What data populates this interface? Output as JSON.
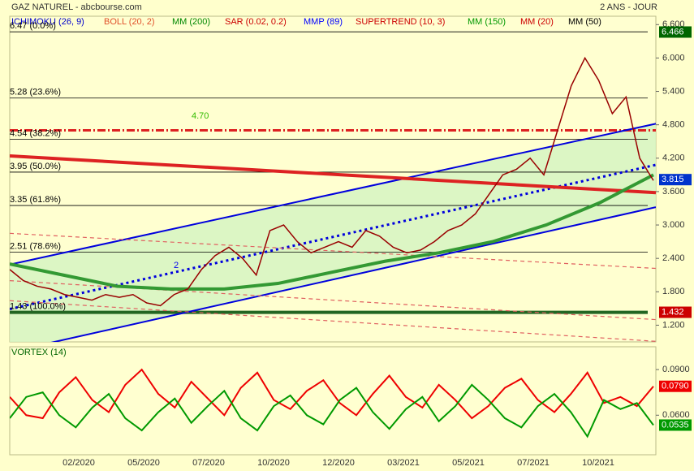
{
  "chart_data": [
    {
      "type": "line",
      "title": "GAZ NATUREL - abcbourse.com",
      "subtitle": "2 ANS - JOUR",
      "legend": [
        {
          "name": "ICHIMOKU (26, 9)",
          "color": "#0000cc"
        },
        {
          "name": "BOLL (20, 2)",
          "color": "#e0502a"
        },
        {
          "name": "MM (200)",
          "color": "#008800"
        },
        {
          "name": "SAR (0.02, 0.2)",
          "color": "#cc0000"
        },
        {
          "name": "MMP (89)",
          "color": "#0000ff"
        },
        {
          "name": "SUPERTREND (10, 3)",
          "color": "#cc0000"
        },
        {
          "name": "MM (150)",
          "color": "#009900"
        },
        {
          "name": "MM (20)",
          "color": "#cc0000"
        },
        {
          "name": "MM (50)",
          "color": "#000000"
        }
      ],
      "x_labels": [
        "02/2020",
        "05/2020",
        "07/2020",
        "10/2020",
        "12/2020",
        "03/2021",
        "05/2021",
        "07/2021",
        "10/2021"
      ],
      "ylim": [
        0.9,
        6.75
      ],
      "yticks": [
        {
          "value": 1.2,
          "label": "1.200"
        },
        {
          "value": 1.8,
          "label": "1.800"
        },
        {
          "value": 2.4,
          "label": "2.400"
        },
        {
          "value": 3.0,
          "label": "3.000"
        },
        {
          "value": 3.6,
          "label": "3.600"
        },
        {
          "value": 4.2,
          "label": "4.200"
        },
        {
          "value": 4.8,
          "label": "4.800"
        },
        {
          "value": 5.4,
          "label": "5.400"
        },
        {
          "value": 6.0,
          "label": "6.000"
        },
        {
          "value": 6.6,
          "label": "6.600"
        }
      ],
      "price": {
        "color": "#990000",
        "values": [
          2.2,
          2.0,
          1.9,
          1.85,
          1.75,
          1.7,
          1.65,
          1.75,
          1.7,
          1.75,
          1.6,
          1.55,
          1.75,
          1.85,
          2.2,
          2.45,
          2.6,
          2.4,
          2.1,
          2.9,
          3.0,
          2.7,
          2.5,
          2.6,
          2.7,
          2.6,
          2.9,
          2.8,
          2.6,
          2.5,
          2.55,
          2.7,
          2.9,
          3.0,
          3.2,
          3.55,
          3.9,
          4.0,
          4.2,
          3.9,
          4.7,
          5.5,
          6.0,
          5.6,
          5.0,
          5.3,
          4.2,
          3.8
        ]
      },
      "moving_average": {
        "color": "#339933",
        "values": [
          2.3,
          2.1,
          1.9,
          1.85,
          1.85,
          1.95,
          2.15,
          2.35,
          2.5,
          2.7,
          3.0,
          3.4,
          3.9
        ]
      },
      "fib_levels": [
        {
          "value": 6.47,
          "label": "6.47 (0.0%)"
        },
        {
          "value": 5.28,
          "label": "5.28 (23.6%)"
        },
        {
          "value": 4.54,
          "label": "4.54 (38.2%)"
        },
        {
          "value": 3.95,
          "label": "3.95 (50.0%)"
        },
        {
          "value": 3.35,
          "label": "3.35 (61.8%)"
        },
        {
          "value": 2.51,
          "label": "2.51 (78.6%)"
        },
        {
          "value": 1.43,
          "label": "1.43 (100.0%)"
        }
      ],
      "trendlines": [
        {
          "color": "#0000dd",
          "style": "solid",
          "values": [
            2.29,
            4.82
          ]
        },
        {
          "color": "#0000dd",
          "style": "solid",
          "values": [
            0.72,
            3.32
          ]
        },
        {
          "color": "#0000dd",
          "style": "dotted",
          "values": [
            1.49,
            4.08
          ]
        },
        {
          "color": "#dd2222",
          "style": "thick",
          "values": [
            4.24,
            3.58
          ]
        },
        {
          "color": "#e06060",
          "style": "dashed",
          "values": [
            2.85,
            2.22
          ]
        },
        {
          "color": "#e06060",
          "style": "dashed",
          "values": [
            2.0,
            1.3
          ]
        },
        {
          "color": "#e06060",
          "style": "dashed",
          "values": [
            1.64,
            0.91
          ]
        }
      ],
      "annotation": {
        "value": 4.7,
        "label": "4.70",
        "color": "#33bb00"
      },
      "channel_label": "2",
      "markers": [
        {
          "value": 6.466,
          "label": "6.466",
          "color": "#006600"
        },
        {
          "value": 3.815,
          "label": "3.815",
          "color": "#0033cc"
        },
        {
          "value": 1.432,
          "label": "1.432",
          "color": "#cc0000"
        }
      ]
    },
    {
      "type": "line",
      "title": "VORTEX (14)",
      "ylim": [
        0.034,
        0.105
      ],
      "yticks": [
        {
          "value": 0.09,
          "label": "0.0900"
        },
        {
          "value": 0.06,
          "label": "0.0600"
        }
      ],
      "series": [
        {
          "color": "#ee0000",
          "values": [
            0.072,
            0.06,
            0.058,
            0.075,
            0.085,
            0.07,
            0.062,
            0.08,
            0.09,
            0.074,
            0.065,
            0.082,
            0.071,
            0.06,
            0.078,
            0.088,
            0.07,
            0.064,
            0.076,
            0.083,
            0.068,
            0.06,
            0.074,
            0.086,
            0.072,
            0.065,
            0.08,
            0.07,
            0.058,
            0.066,
            0.078,
            0.084,
            0.07,
            0.062,
            0.074,
            0.088,
            0.068,
            0.072,
            0.066,
            0.079
          ]
        },
        {
          "color": "#009900",
          "values": [
            0.058,
            0.072,
            0.075,
            0.06,
            0.052,
            0.065,
            0.074,
            0.058,
            0.05,
            0.062,
            0.071,
            0.055,
            0.066,
            0.076,
            0.058,
            0.05,
            0.066,
            0.073,
            0.06,
            0.054,
            0.07,
            0.078,
            0.062,
            0.051,
            0.064,
            0.072,
            0.056,
            0.066,
            0.08,
            0.07,
            0.058,
            0.052,
            0.066,
            0.074,
            0.062,
            0.046,
            0.07,
            0.064,
            0.068,
            0.0535
          ]
        }
      ],
      "markers": [
        {
          "value": 0.079,
          "label": "0.0790",
          "color": "#ee0000"
        },
        {
          "value": 0.0535,
          "label": "0.0535",
          "color": "#009900"
        }
      ]
    }
  ]
}
